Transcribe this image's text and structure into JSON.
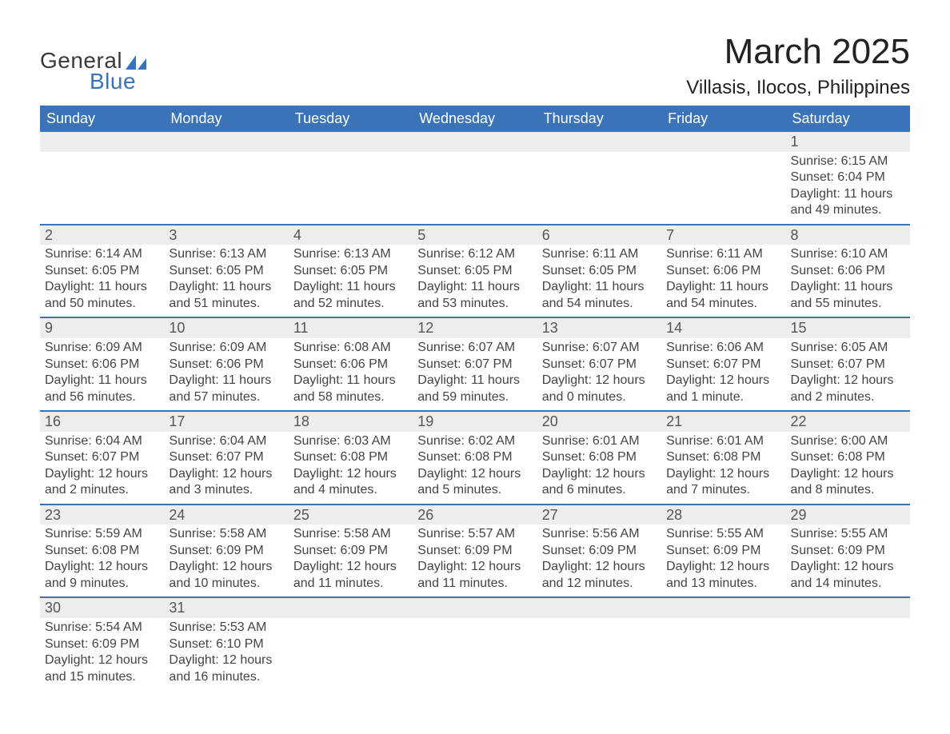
{
  "brand": {
    "text_general": "General",
    "text_blue": "Blue",
    "sail_color": "#3b73b9"
  },
  "header": {
    "month_title": "March 2025",
    "location": "Villasis, Ilocos, Philippines"
  },
  "styling": {
    "header_bg": "#3b73b9",
    "header_text_color": "#ffffff",
    "daynum_bg": "#ededed",
    "daynum_text_color": "#555555",
    "body_text_color": "#444444",
    "row_separator_color": "#3b73b9",
    "page_bg": "#ffffff",
    "month_title_fontsize": 44,
    "location_fontsize": 24,
    "dayhead_fontsize": 18,
    "body_fontsize": 16
  },
  "day_labels": [
    "Sunday",
    "Monday",
    "Tuesday",
    "Wednesday",
    "Thursday",
    "Friday",
    "Saturday"
  ],
  "weeks": [
    [
      {
        "empty": true
      },
      {
        "empty": true
      },
      {
        "empty": true
      },
      {
        "empty": true
      },
      {
        "empty": true
      },
      {
        "empty": true
      },
      {
        "day": "1",
        "sunrise": "Sunrise: 6:15 AM",
        "sunset": "Sunset: 6:04 PM",
        "daylight1": "Daylight: 11 hours",
        "daylight2": "and 49 minutes."
      }
    ],
    [
      {
        "day": "2",
        "sunrise": "Sunrise: 6:14 AM",
        "sunset": "Sunset: 6:05 PM",
        "daylight1": "Daylight: 11 hours",
        "daylight2": "and 50 minutes."
      },
      {
        "day": "3",
        "sunrise": "Sunrise: 6:13 AM",
        "sunset": "Sunset: 6:05 PM",
        "daylight1": "Daylight: 11 hours",
        "daylight2": "and 51 minutes."
      },
      {
        "day": "4",
        "sunrise": "Sunrise: 6:13 AM",
        "sunset": "Sunset: 6:05 PM",
        "daylight1": "Daylight: 11 hours",
        "daylight2": "and 52 minutes."
      },
      {
        "day": "5",
        "sunrise": "Sunrise: 6:12 AM",
        "sunset": "Sunset: 6:05 PM",
        "daylight1": "Daylight: 11 hours",
        "daylight2": "and 53 minutes."
      },
      {
        "day": "6",
        "sunrise": "Sunrise: 6:11 AM",
        "sunset": "Sunset: 6:05 PM",
        "daylight1": "Daylight: 11 hours",
        "daylight2": "and 54 minutes."
      },
      {
        "day": "7",
        "sunrise": "Sunrise: 6:11 AM",
        "sunset": "Sunset: 6:06 PM",
        "daylight1": "Daylight: 11 hours",
        "daylight2": "and 54 minutes."
      },
      {
        "day": "8",
        "sunrise": "Sunrise: 6:10 AM",
        "sunset": "Sunset: 6:06 PM",
        "daylight1": "Daylight: 11 hours",
        "daylight2": "and 55 minutes."
      }
    ],
    [
      {
        "day": "9",
        "sunrise": "Sunrise: 6:09 AM",
        "sunset": "Sunset: 6:06 PM",
        "daylight1": "Daylight: 11 hours",
        "daylight2": "and 56 minutes."
      },
      {
        "day": "10",
        "sunrise": "Sunrise: 6:09 AM",
        "sunset": "Sunset: 6:06 PM",
        "daylight1": "Daylight: 11 hours",
        "daylight2": "and 57 minutes."
      },
      {
        "day": "11",
        "sunrise": "Sunrise: 6:08 AM",
        "sunset": "Sunset: 6:06 PM",
        "daylight1": "Daylight: 11 hours",
        "daylight2": "and 58 minutes."
      },
      {
        "day": "12",
        "sunrise": "Sunrise: 6:07 AM",
        "sunset": "Sunset: 6:07 PM",
        "daylight1": "Daylight: 11 hours",
        "daylight2": "and 59 minutes."
      },
      {
        "day": "13",
        "sunrise": "Sunrise: 6:07 AM",
        "sunset": "Sunset: 6:07 PM",
        "daylight1": "Daylight: 12 hours",
        "daylight2": "and 0 minutes."
      },
      {
        "day": "14",
        "sunrise": "Sunrise: 6:06 AM",
        "sunset": "Sunset: 6:07 PM",
        "daylight1": "Daylight: 12 hours",
        "daylight2": "and 1 minute."
      },
      {
        "day": "15",
        "sunrise": "Sunrise: 6:05 AM",
        "sunset": "Sunset: 6:07 PM",
        "daylight1": "Daylight: 12 hours",
        "daylight2": "and 2 minutes."
      }
    ],
    [
      {
        "day": "16",
        "sunrise": "Sunrise: 6:04 AM",
        "sunset": "Sunset: 6:07 PM",
        "daylight1": "Daylight: 12 hours",
        "daylight2": "and 2 minutes."
      },
      {
        "day": "17",
        "sunrise": "Sunrise: 6:04 AM",
        "sunset": "Sunset: 6:07 PM",
        "daylight1": "Daylight: 12 hours",
        "daylight2": "and 3 minutes."
      },
      {
        "day": "18",
        "sunrise": "Sunrise: 6:03 AM",
        "sunset": "Sunset: 6:08 PM",
        "daylight1": "Daylight: 12 hours",
        "daylight2": "and 4 minutes."
      },
      {
        "day": "19",
        "sunrise": "Sunrise: 6:02 AM",
        "sunset": "Sunset: 6:08 PM",
        "daylight1": "Daylight: 12 hours",
        "daylight2": "and 5 minutes."
      },
      {
        "day": "20",
        "sunrise": "Sunrise: 6:01 AM",
        "sunset": "Sunset: 6:08 PM",
        "daylight1": "Daylight: 12 hours",
        "daylight2": "and 6 minutes."
      },
      {
        "day": "21",
        "sunrise": "Sunrise: 6:01 AM",
        "sunset": "Sunset: 6:08 PM",
        "daylight1": "Daylight: 12 hours",
        "daylight2": "and 7 minutes."
      },
      {
        "day": "22",
        "sunrise": "Sunrise: 6:00 AM",
        "sunset": "Sunset: 6:08 PM",
        "daylight1": "Daylight: 12 hours",
        "daylight2": "and 8 minutes."
      }
    ],
    [
      {
        "day": "23",
        "sunrise": "Sunrise: 5:59 AM",
        "sunset": "Sunset: 6:08 PM",
        "daylight1": "Daylight: 12 hours",
        "daylight2": "and 9 minutes."
      },
      {
        "day": "24",
        "sunrise": "Sunrise: 5:58 AM",
        "sunset": "Sunset: 6:09 PM",
        "daylight1": "Daylight: 12 hours",
        "daylight2": "and 10 minutes."
      },
      {
        "day": "25",
        "sunrise": "Sunrise: 5:58 AM",
        "sunset": "Sunset: 6:09 PM",
        "daylight1": "Daylight: 12 hours",
        "daylight2": "and 11 minutes."
      },
      {
        "day": "26",
        "sunrise": "Sunrise: 5:57 AM",
        "sunset": "Sunset: 6:09 PM",
        "daylight1": "Daylight: 12 hours",
        "daylight2": "and 11 minutes."
      },
      {
        "day": "27",
        "sunrise": "Sunrise: 5:56 AM",
        "sunset": "Sunset: 6:09 PM",
        "daylight1": "Daylight: 12 hours",
        "daylight2": "and 12 minutes."
      },
      {
        "day": "28",
        "sunrise": "Sunrise: 5:55 AM",
        "sunset": "Sunset: 6:09 PM",
        "daylight1": "Daylight: 12 hours",
        "daylight2": "and 13 minutes."
      },
      {
        "day": "29",
        "sunrise": "Sunrise: 5:55 AM",
        "sunset": "Sunset: 6:09 PM",
        "daylight1": "Daylight: 12 hours",
        "daylight2": "and 14 minutes."
      }
    ],
    [
      {
        "day": "30",
        "sunrise": "Sunrise: 5:54 AM",
        "sunset": "Sunset: 6:09 PM",
        "daylight1": "Daylight: 12 hours",
        "daylight2": "and 15 minutes."
      },
      {
        "day": "31",
        "sunrise": "Sunrise: 5:53 AM",
        "sunset": "Sunset: 6:10 PM",
        "daylight1": "Daylight: 12 hours",
        "daylight2": "and 16 minutes."
      },
      {
        "empty": true
      },
      {
        "empty": true
      },
      {
        "empty": true
      },
      {
        "empty": true
      },
      {
        "empty": true
      }
    ]
  ]
}
